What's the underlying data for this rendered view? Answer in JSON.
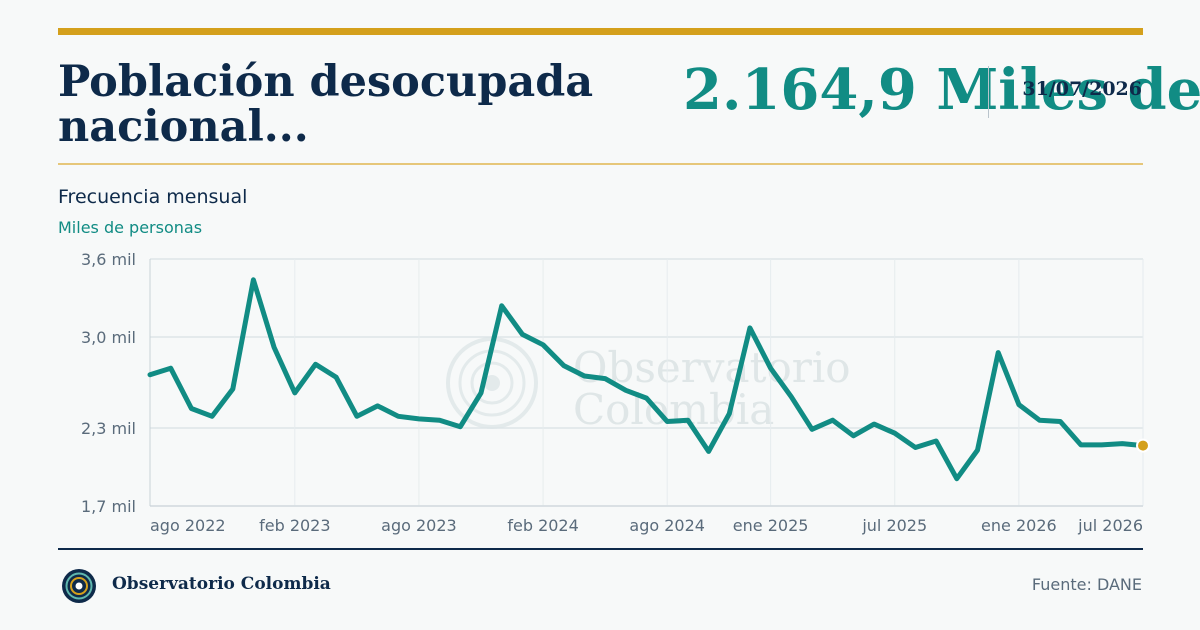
{
  "header": {
    "title": "Población desocupada nacional...",
    "latest_value": "2.164,9 Miles de",
    "date": "31/07/2026"
  },
  "frequency": "Frecuencia mensual",
  "unit": "Miles de personas",
  "watermark": {
    "line1": "Observatorio",
    "line2": "Colombia"
  },
  "footer": {
    "brand": "Observatorio Colombia",
    "source": "Fuente: DANE"
  },
  "colors": {
    "line": "#118c84",
    "accent": "#d4a01c",
    "navy": "#0e2a4a"
  },
  "chart_data": {
    "type": "line",
    "title": "Población desocupada nacional...",
    "subtitle": "Frecuencia mensual",
    "ylabel": "Miles de personas",
    "ylim": [
      1.7,
      3.6
    ],
    "yticks": [
      {
        "value": 3.6,
        "label": "3,6 mil"
      },
      {
        "value": 3.0,
        "label": "3,0 mil"
      },
      {
        "value": 2.3,
        "label": "2,3 mil"
      },
      {
        "value": 1.7,
        "label": "1,7 mil"
      }
    ],
    "xlim": [
      "2022-07",
      "2026-07"
    ],
    "xticks": [
      {
        "date": "2022-08",
        "label": "ago 2022"
      },
      {
        "date": "2023-02",
        "label": "feb 2023"
      },
      {
        "date": "2023-08",
        "label": "ago 2023"
      },
      {
        "date": "2024-02",
        "label": "feb 2024"
      },
      {
        "date": "2024-08",
        "label": "ago 2024"
      },
      {
        "date": "2025-01",
        "label": "ene 2025"
      },
      {
        "date": "2025-07",
        "label": "jul 2025"
      },
      {
        "date": "2026-01",
        "label": "ene 2026"
      },
      {
        "date": "2026-07",
        "label": "jul 2026"
      }
    ],
    "x_gridlines": [
      "2023-02",
      "2023-08",
      "2024-02",
      "2024-08",
      "2025-01",
      "2025-07",
      "2026-01",
      "2026-07"
    ],
    "grid": true,
    "series": [
      {
        "x": [
          "2022-07",
          "2022-08",
          "2022-09",
          "2022-10",
          "2022-11",
          "2022-12",
          "2023-01",
          "2023-02",
          "2023-03",
          "2023-04",
          "2023-05",
          "2023-06",
          "2023-07",
          "2023-08",
          "2023-09",
          "2023-10",
          "2023-11",
          "2023-12",
          "2024-01",
          "2024-02",
          "2024-03",
          "2024-04",
          "2024-05",
          "2024-06",
          "2024-07",
          "2024-08",
          "2024-09",
          "2024-10",
          "2024-11",
          "2024-12",
          "2025-01",
          "2025-02",
          "2025-03",
          "2025-04",
          "2025-05",
          "2025-06",
          "2025-07",
          "2025-08",
          "2025-09",
          "2025-10",
          "2025-11",
          "2025-12",
          "2026-01",
          "2026-02",
          "2026-03",
          "2026-04",
          "2026-05",
          "2026-06",
          "2026-07"
        ],
        "values": [
          2.71,
          2.76,
          2.45,
          2.39,
          2.6,
          3.44,
          2.92,
          2.57,
          2.79,
          2.69,
          2.39,
          2.47,
          2.39,
          2.37,
          2.36,
          2.31,
          2.57,
          3.24,
          3.02,
          2.94,
          2.78,
          2.7,
          2.68,
          2.59,
          2.53,
          2.35,
          2.36,
          2.12,
          2.41,
          3.07,
          2.76,
          2.54,
          2.29,
          2.36,
          2.24,
          2.33,
          2.26,
          2.15,
          2.2,
          1.91,
          2.13,
          2.88,
          2.48,
          2.36,
          2.35,
          2.17,
          2.17,
          2.18,
          2.165
        ]
      }
    ],
    "highlight": {
      "date": "2026-07",
      "value": 2.1649
    }
  }
}
